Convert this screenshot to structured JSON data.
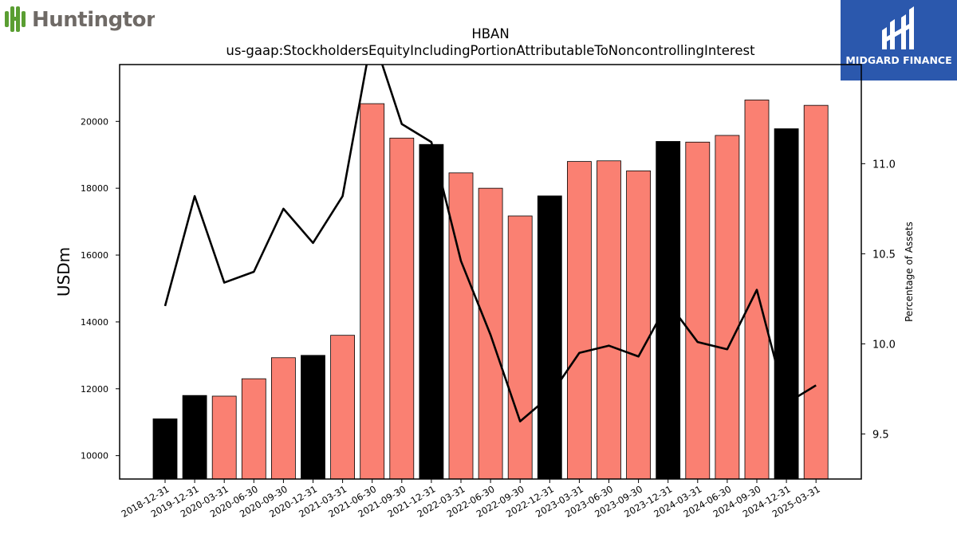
{
  "logos": {
    "left_text": "Huntington",
    "right_text": "MIDGARD FINANCE",
    "left_color": "#5a9e32",
    "right_bg": "#2b58ad"
  },
  "chart_data": {
    "type": "bar",
    "title": "HBAN",
    "subtitle": "us-gaap:StockholdersEquityIncludingPortionAttributableToNoncontrollingInterest",
    "ylabel": "USDm",
    "y2label": "Percentage of Assets",
    "ylim": [
      9300,
      21700
    ],
    "y2lim": [
      9.25,
      11.55
    ],
    "yticks": [
      10000,
      12000,
      14000,
      16000,
      18000,
      20000
    ],
    "y2ticks": [
      9.5,
      10.0,
      10.5,
      11.0
    ],
    "grid": false,
    "categories": [
      "2018-12-31",
      "2019-12-31",
      "2020-03-31",
      "2020-06-30",
      "2020-09-30",
      "2020-12-31",
      "2021-03-31",
      "2021-06-30",
      "2021-09-30",
      "2021-12-31",
      "2022-03-31",
      "2022-06-30",
      "2022-09-30",
      "2022-12-31",
      "2023-03-31",
      "2023-06-30",
      "2023-09-30",
      "2023-12-31",
      "2024-03-31",
      "2024-06-30",
      "2024-09-30",
      "2024-12-31",
      "2025-03-31"
    ],
    "series": [
      {
        "kind": "bar",
        "values": [
          11100,
          11800,
          11780,
          12300,
          12930,
          13000,
          13600,
          20530,
          19500,
          19310,
          18460,
          18000,
          17170,
          17770,
          18800,
          18820,
          18520,
          19400,
          19380,
          19580,
          20640,
          19780,
          20480
        ],
        "colors": [
          "#000000",
          "#000000",
          "#fa8072",
          "#fa8072",
          "#fa8072",
          "#000000",
          "#fa8072",
          "#fa8072",
          "#fa8072",
          "#000000",
          "#fa8072",
          "#fa8072",
          "#fa8072",
          "#000000",
          "#fa8072",
          "#fa8072",
          "#fa8072",
          "#000000",
          "#fa8072",
          "#fa8072",
          "#fa8072",
          "#000000",
          "#fa8072"
        ]
      },
      {
        "kind": "line",
        "axis": "right",
        "values": [
          10.21,
          10.82,
          10.34,
          10.4,
          10.75,
          10.56,
          10.82,
          11.72,
          11.22,
          11.12,
          10.46,
          10.05,
          9.57,
          9.71,
          9.95,
          9.99,
          9.93,
          10.23,
          10.01,
          9.97,
          10.3,
          9.67,
          9.77
        ],
        "color": "#000000"
      }
    ]
  }
}
